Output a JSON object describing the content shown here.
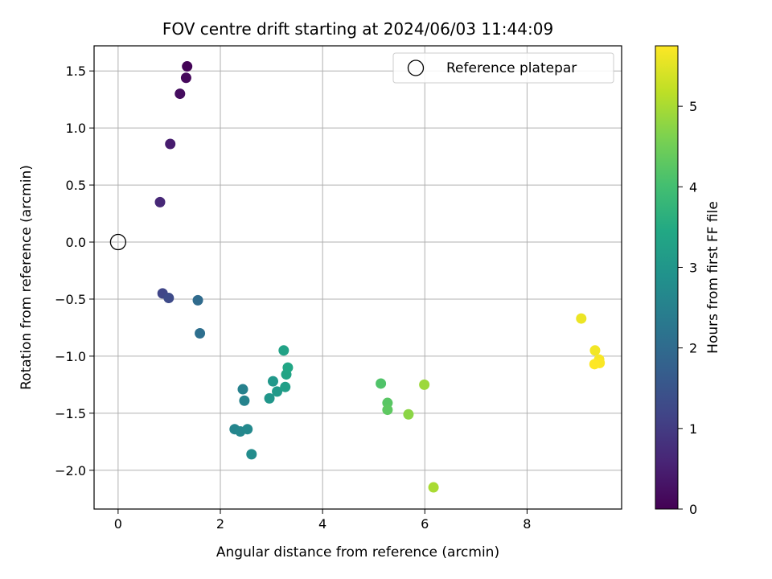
{
  "chart_data": {
    "type": "scatter",
    "title": "FOV centre drift starting at 2024/06/03 11:44:09",
    "xlabel": "Angular distance from reference (arcmin)",
    "ylabel": "Rotation from reference (arcmin)",
    "xlim": [
      -0.47,
      9.85
    ],
    "ylim": [
      -2.34,
      1.72
    ],
    "xticks": [
      0,
      2,
      4,
      6,
      8
    ],
    "xtick_labels": [
      "0",
      "2",
      "4",
      "6",
      "8"
    ],
    "yticks": [
      -2.0,
      -1.5,
      -1.0,
      -0.5,
      0.0,
      0.5,
      1.0,
      1.5
    ],
    "ytick_labels": [
      "−2.0",
      "−1.5",
      "−1.0",
      "−0.5",
      "0.0",
      "0.5",
      "1.0",
      "1.5"
    ],
    "grid": true,
    "colormap": "viridis",
    "colorbar": {
      "label": "Hours from first FF file",
      "range": [
        0,
        5.75
      ],
      "ticks": [
        0,
        1,
        2,
        3,
        4,
        5
      ],
      "tick_labels": [
        "0",
        "1",
        "2",
        "3",
        "4",
        "5"
      ]
    },
    "legend": {
      "position": "top-right",
      "entries": [
        "Reference platepar"
      ]
    },
    "reference_point": {
      "x": 0.0,
      "y": 0.0,
      "label": "Reference platepar"
    },
    "points": [
      {
        "x": 1.35,
        "y": 1.54,
        "hours": 0.05
      },
      {
        "x": 1.33,
        "y": 1.44,
        "hours": 0.12
      },
      {
        "x": 1.21,
        "y": 1.3,
        "hours": 0.2
      },
      {
        "x": 1.02,
        "y": 0.86,
        "hours": 0.45
      },
      {
        "x": 0.82,
        "y": 0.35,
        "hours": 0.65
      },
      {
        "x": 0.87,
        "y": -0.45,
        "hours": 1.2
      },
      {
        "x": 0.99,
        "y": -0.49,
        "hours": 1.3
      },
      {
        "x": 1.56,
        "y": -0.51,
        "hours": 2.0
      },
      {
        "x": 1.6,
        "y": -0.8,
        "hours": 2.1
      },
      {
        "x": 2.44,
        "y": -1.29,
        "hours": 2.5
      },
      {
        "x": 2.47,
        "y": -1.39,
        "hours": 2.55
      },
      {
        "x": 2.28,
        "y": -1.64,
        "hours": 2.6
      },
      {
        "x": 2.39,
        "y": -1.66,
        "hours": 2.65
      },
      {
        "x": 2.53,
        "y": -1.64,
        "hours": 2.7
      },
      {
        "x": 2.61,
        "y": -1.86,
        "hours": 2.75
      },
      {
        "x": 2.96,
        "y": -1.37,
        "hours": 3.0
      },
      {
        "x": 3.03,
        "y": -1.22,
        "hours": 3.05
      },
      {
        "x": 3.11,
        "y": -1.31,
        "hours": 3.1
      },
      {
        "x": 3.27,
        "y": -1.27,
        "hours": 3.2
      },
      {
        "x": 3.24,
        "y": -0.95,
        "hours": 3.3
      },
      {
        "x": 3.29,
        "y": -1.16,
        "hours": 3.35
      },
      {
        "x": 3.32,
        "y": -1.1,
        "hours": 3.4
      },
      {
        "x": 5.14,
        "y": -1.24,
        "hours": 4.15
      },
      {
        "x": 5.27,
        "y": -1.41,
        "hours": 4.25
      },
      {
        "x": 5.27,
        "y": -1.47,
        "hours": 4.3
      },
      {
        "x": 5.68,
        "y": -1.51,
        "hours": 4.75
      },
      {
        "x": 5.99,
        "y": -1.25,
        "hours": 4.9
      },
      {
        "x": 6.17,
        "y": -2.15,
        "hours": 5.0
      },
      {
        "x": 9.06,
        "y": -0.67,
        "hours": 5.6
      },
      {
        "x": 9.33,
        "y": -0.95,
        "hours": 5.65
      },
      {
        "x": 9.41,
        "y": -1.03,
        "hours": 5.7
      },
      {
        "x": 9.42,
        "y": -1.06,
        "hours": 5.72
      },
      {
        "x": 9.32,
        "y": -1.07,
        "hours": 5.75
      }
    ]
  }
}
